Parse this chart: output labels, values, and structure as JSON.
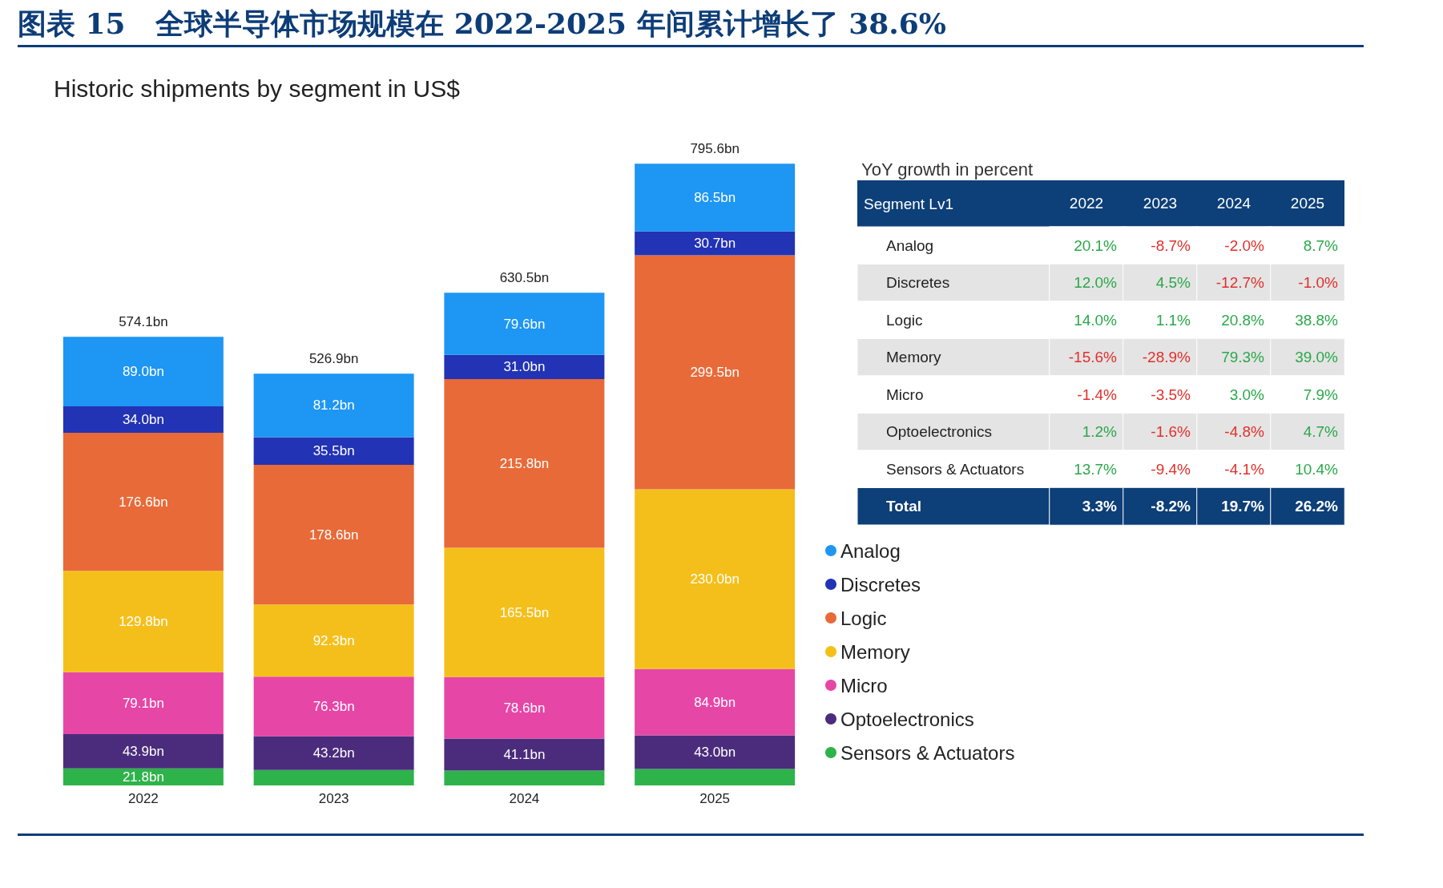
{
  "chart_data": [
    {
      "type": "bar",
      "title": "图表 15   全球半导体市场规模在 2022-2025 年间累计增长了 38.6%",
      "subtitle": "Historic shipments by segment in US$",
      "categories": [
        "2022",
        "2023",
        "2024",
        "2025"
      ],
      "stacked": true,
      "legend": "right",
      "series": [
        {
          "name": "Sensors & Actuators",
          "color": "#2db34a",
          "values": [
            21.8,
            19.8,
            18.9,
            21.0
          ],
          "value_labels": [
            "21.8bn",
            null,
            null,
            null
          ]
        },
        {
          "name": "Optoelectronics",
          "color": "#4b2c7c",
          "values": [
            43.9,
            43.2,
            41.1,
            43.0
          ],
          "value_labels": [
            "43.9bn",
            "43.2bn",
            "41.1bn",
            "43.0bn"
          ]
        },
        {
          "name": "Micro",
          "color": "#e646a6",
          "values": [
            79.1,
            76.3,
            78.6,
            84.9
          ],
          "value_labels": [
            "79.1bn",
            "76.3bn",
            "78.6bn",
            "84.9bn"
          ]
        },
        {
          "name": "Memory",
          "color": "#f5bf1b",
          "values": [
            129.8,
            92.3,
            165.5,
            230.0
          ],
          "value_labels": [
            "129.8bn",
            "92.3bn",
            "165.5bn",
            "230.0bn"
          ]
        },
        {
          "name": "Logic",
          "color": "#e86a38",
          "values": [
            176.6,
            178.6,
            215.8,
            299.5
          ],
          "value_labels": [
            "176.6bn",
            "178.6bn",
            "215.8bn",
            "299.5bn"
          ]
        },
        {
          "name": "Discretes",
          "color": "#2233b5",
          "values": [
            34.0,
            35.5,
            31.0,
            30.7
          ],
          "value_labels": [
            "34.0bn",
            "35.5bn",
            "31.0bn",
            "30.7bn"
          ]
        },
        {
          "name": "Analog",
          "color": "#1e96f3",
          "values": [
            89.0,
            81.2,
            79.6,
            86.5
          ],
          "value_labels": [
            "89.0bn",
            "81.2bn",
            "79.6bn",
            "86.5bn"
          ]
        }
      ],
      "totals": [
        "574.1bn",
        "526.9bn",
        "630.5bn",
        "795.6bn"
      ]
    },
    {
      "type": "heatmap",
      "title": "YoY growth in percent",
      "ylabel": "Segment Lv1",
      "categories": [
        "2022",
        "2023",
        "2024",
        "2025"
      ],
      "y_categories": [
        "Analog",
        "Discretes",
        "Logic",
        "Memory",
        "Micro",
        "Optoelectronics",
        "Sensors & Actuators",
        "Total"
      ],
      "cells": [
        [
          20.1,
          -8.7,
          -2.0,
          8.7
        ],
        [
          12.0,
          4.5,
          -12.7,
          -1.0
        ],
        [
          14.0,
          1.1,
          20.8,
          38.8
        ],
        [
          -15.6,
          -28.9,
          79.3,
          39.0
        ],
        [
          -1.4,
          -3.5,
          3.0,
          7.9
        ],
        [
          1.2,
          -1.6,
          -4.8,
          4.7
        ],
        [
          13.7,
          -9.4,
          -4.1,
          10.4
        ],
        [
          3.3,
          -8.2,
          19.7,
          26.2
        ]
      ],
      "cell_labels": [
        [
          "20.1%",
          "-8.7%",
          "-2.0%",
          "8.7%"
        ],
        [
          "12.0%",
          "4.5%",
          "-12.7%",
          "-1.0%"
        ],
        [
          "14.0%",
          "1.1%",
          "20.8%",
          "38.8%"
        ],
        [
          "-15.6%",
          "-28.9%",
          "79.3%",
          "39.0%"
        ],
        [
          "-1.4%",
          "-3.5%",
          "3.0%",
          "7.9%"
        ],
        [
          "1.2%",
          "-1.6%",
          "-4.8%",
          "4.7%"
        ],
        [
          "13.7%",
          "-9.4%",
          "-4.1%",
          "10.4%"
        ],
        [
          "3.3%",
          "-8.2%",
          "19.7%",
          "26.2%"
        ]
      ]
    }
  ]
}
